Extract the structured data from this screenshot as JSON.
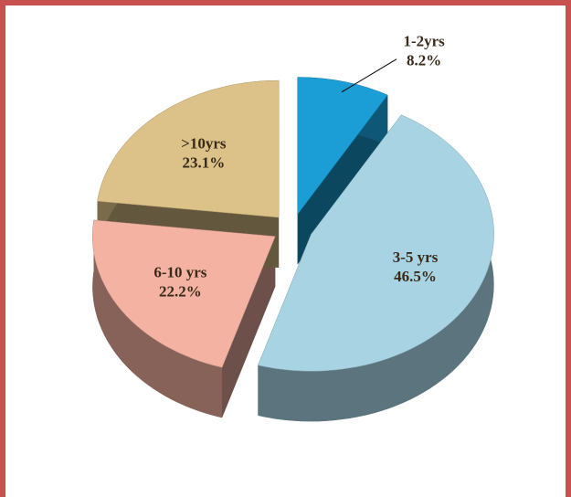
{
  "chart_data": {
    "type": "pie",
    "categories": [
      "1-2yrs",
      "3-5 yrs",
      "6-10 yrs",
      ">10yrs"
    ],
    "values": [
      8.2,
      46.5,
      22.2,
      23.1
    ],
    "value_labels": [
      "8.2%",
      "46.5%",
      "22.2%",
      "23.1%"
    ],
    "colors": [
      "#1b9ed6",
      "#a8d3e3",
      "#f3b2a2",
      "#dcc288"
    ]
  }
}
